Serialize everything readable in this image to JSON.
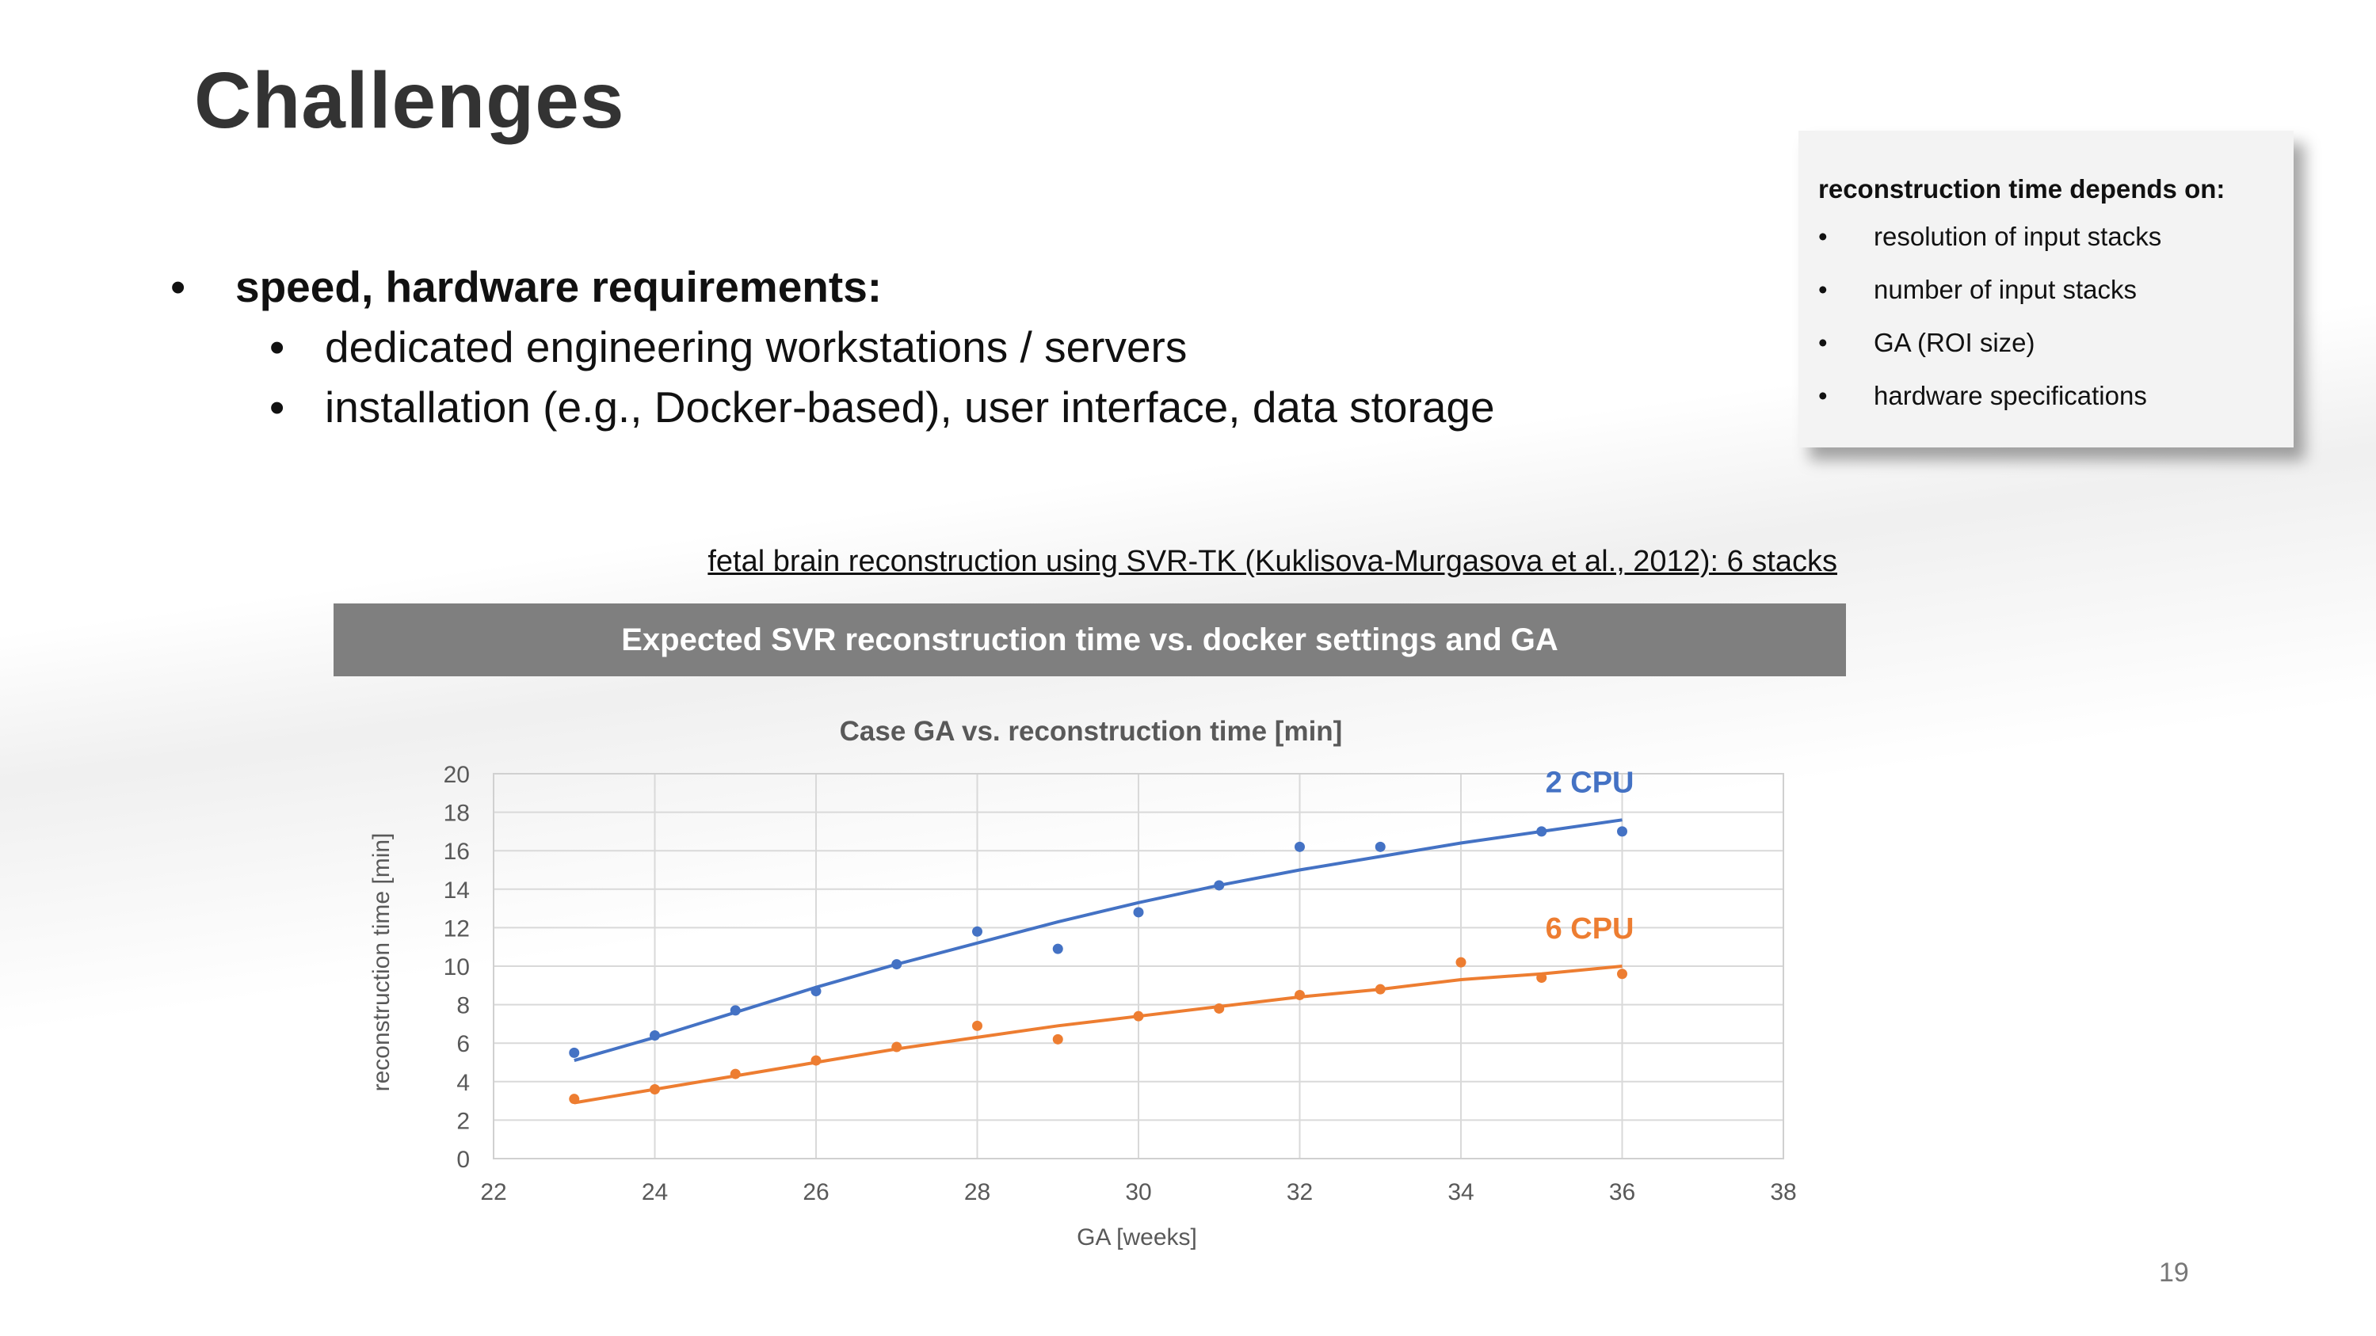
{
  "slide": {
    "title": "Challenges",
    "page_number": "19",
    "bullets": {
      "main": "speed, hardware requirements:",
      "sub": [
        "dedicated engineering workstations / servers",
        "installation (e.g., Docker-based), user interface, data storage"
      ]
    },
    "infobox": {
      "heading": "reconstruction time depends on:",
      "items": [
        "resolution of input stacks",
        "number of input stacks",
        "GA (ROI size)",
        "hardware specifications"
      ]
    },
    "reference": "fetal brain reconstruction using SVR-TK (Kuklisova-Murgasova et al., 2012): 6 stacks",
    "banner": "Expected SVR reconstruction time vs. docker settings and GA"
  },
  "chart_data": {
    "type": "scatter",
    "title": "Case GA vs. reconstruction time [min]",
    "xlabel": "GA [weeks]",
    "ylabel": "reconstruction time [min]",
    "xlim": [
      22,
      38
    ],
    "ylim": [
      0,
      20
    ],
    "xticks": [
      22,
      24,
      26,
      28,
      30,
      32,
      34,
      36,
      38
    ],
    "yticks": [
      0,
      2,
      4,
      6,
      8,
      10,
      12,
      14,
      16,
      18,
      20
    ],
    "grid": true,
    "series": [
      {
        "name": "2 CPU",
        "color": "#4472c4",
        "points": [
          [
            23,
            5.5
          ],
          [
            24,
            6.4
          ],
          [
            25,
            7.7
          ],
          [
            26,
            8.7
          ],
          [
            27,
            10.1
          ],
          [
            28,
            11.8
          ],
          [
            29,
            10.9
          ],
          [
            30,
            12.8
          ],
          [
            31,
            14.2
          ],
          [
            32,
            16.2
          ],
          [
            33,
            16.2
          ],
          [
            35,
            17.0
          ],
          [
            36,
            17.0
          ]
        ],
        "trend": [
          [
            23,
            5.1
          ],
          [
            24,
            6.3
          ],
          [
            25,
            7.6
          ],
          [
            26,
            8.9
          ],
          [
            27,
            10.1
          ],
          [
            28,
            11.2
          ],
          [
            29,
            12.3
          ],
          [
            30,
            13.3
          ],
          [
            31,
            14.2
          ],
          [
            32,
            15.0
          ],
          [
            33,
            15.7
          ],
          [
            34,
            16.4
          ],
          [
            35,
            17.0
          ],
          [
            36,
            17.6
          ]
        ]
      },
      {
        "name": "6 CPU",
        "color": "#ed7d31",
        "points": [
          [
            23,
            3.1
          ],
          [
            24,
            3.6
          ],
          [
            25,
            4.4
          ],
          [
            26,
            5.1
          ],
          [
            27,
            5.8
          ],
          [
            28,
            6.9
          ],
          [
            29,
            6.2
          ],
          [
            30,
            7.4
          ],
          [
            31,
            7.8
          ],
          [
            32,
            8.5
          ],
          [
            33,
            8.8
          ],
          [
            34,
            10.2
          ],
          [
            35,
            9.4
          ],
          [
            36,
            9.6
          ]
        ],
        "trend": [
          [
            23,
            2.9
          ],
          [
            24,
            3.6
          ],
          [
            25,
            4.3
          ],
          [
            26,
            5.0
          ],
          [
            27,
            5.7
          ],
          [
            28,
            6.3
          ],
          [
            29,
            6.9
          ],
          [
            30,
            7.4
          ],
          [
            31,
            7.9
          ],
          [
            32,
            8.4
          ],
          [
            33,
            8.8
          ],
          [
            34,
            9.3
          ],
          [
            35,
            9.6
          ],
          [
            36,
            10.0
          ]
        ]
      }
    ]
  }
}
